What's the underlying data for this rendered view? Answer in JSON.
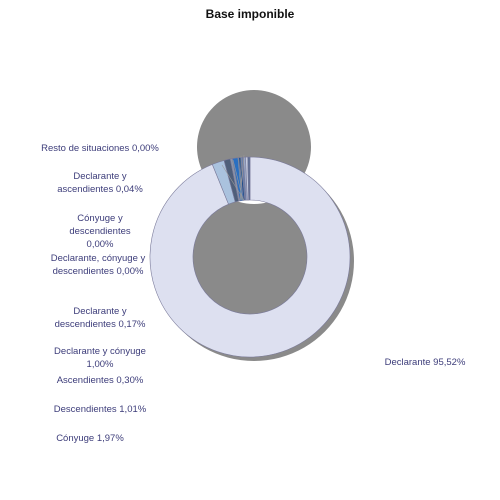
{
  "chart_data": {
    "type": "pie",
    "title": "Base imponible",
    "slices": [
      {
        "name": "Declarante",
        "value": 95.52,
        "label": "Declarante 95,52%",
        "color": "#dde0f0"
      },
      {
        "name": "Cónyuge",
        "value": 1.97,
        "label": "Cónyuge 1,97%",
        "color": "#aac2de"
      },
      {
        "name": "Descendientes",
        "value": 1.01,
        "label": "Descendientes 1,01%",
        "color": "#4f5f7a"
      },
      {
        "name": "Ascendientes",
        "value": 0.3,
        "label": "Ascendientes 0,30%",
        "color": "#8c96a8"
      },
      {
        "name": "Declarante y cónyuge",
        "value": 1.0,
        "label": "Declarante y cónyuge 1,00%",
        "color": "#2a6fc1"
      },
      {
        "name": "Declarante y descendientes",
        "value": 0.17,
        "label": "Declarante y descendientes 0,17%",
        "color": "#1e4f8c"
      },
      {
        "name": "Declarante, cónyuge y descendientes",
        "value": 0.0,
        "label": "Declarante, cónyuge y descendientes 0,00%",
        "color": "#6b7fa8"
      },
      {
        "name": "Cónyuge y descendientes",
        "value": 0.0,
        "label": "Cónyuge y descendientes 0,00%",
        "color": "#9aa8c6"
      },
      {
        "name": "Declarante y ascendientes",
        "value": 0.04,
        "label": "Declarante y ascendientes 0,04%",
        "color": "#c5cde0"
      },
      {
        "name": "Resto de situaciones",
        "value": 0.0,
        "label": "Resto de situaciones 0,00%",
        "color": "#5c6d92"
      }
    ],
    "donut": true
  },
  "colors": {
    "label_text": "#3d3d7a",
    "shadow": "#8a8a8a",
    "slice_stroke": "#7a7a9a"
  }
}
